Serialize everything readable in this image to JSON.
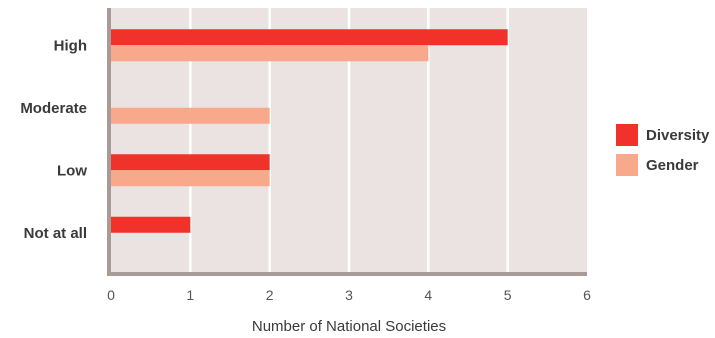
{
  "chart_data": {
    "type": "bar",
    "orientation": "horizontal",
    "categories": [
      "High",
      "Moderate",
      "Low",
      "Not at all"
    ],
    "series": [
      {
        "name": "Diversity",
        "values": [
          5,
          0,
          2,
          1
        ],
        "color": "#f0322a"
      },
      {
        "name": "Gender",
        "values": [
          4,
          2,
          2,
          0
        ],
        "color": "#f9a98b"
      }
    ],
    "xlabel": "Number of National Societies",
    "ylabel": "",
    "xlim": [
      0,
      6
    ],
    "xticks": [
      "0",
      "1",
      "2",
      "3",
      "4",
      "5",
      "6"
    ],
    "grid": true,
    "legend_position": "right",
    "plot_background": "#ebe3e1",
    "axis_color": "#a89a96"
  }
}
